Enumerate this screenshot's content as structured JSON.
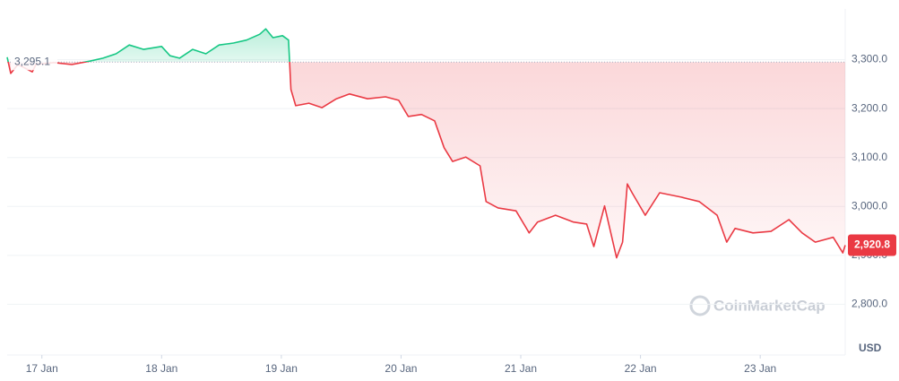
{
  "chart_data": {
    "type": "line",
    "currency": "USD",
    "watermark": "CoinMarketCap",
    "grid": true,
    "up_color": "#16c784",
    "down_color": "#ea3943",
    "baseline": {
      "value": 3295.1,
      "label": "3,295.1"
    },
    "last_value": {
      "value": 2920.8,
      "label": "2,920.8"
    },
    "xlim": [
      -0.29,
      6.71
    ],
    "xticks": [
      {
        "value": 0,
        "label": "17 Jan"
      },
      {
        "value": 1,
        "label": "18 Jan"
      },
      {
        "value": 2,
        "label": "19 Jan"
      },
      {
        "value": 3,
        "label": "20 Jan"
      },
      {
        "value": 4,
        "label": "21 Jan"
      },
      {
        "value": 5,
        "label": "22 Jan"
      },
      {
        "value": 6,
        "label": "23 Jan"
      }
    ],
    "ylim": [
      2700,
      3400
    ],
    "yticks": [
      {
        "value": 2800,
        "label": "2,800.0"
      },
      {
        "value": 2900,
        "label": "2,900.0"
      },
      {
        "value": 3000,
        "label": "3,000.0"
      },
      {
        "value": 3100,
        "label": "3,100.0"
      },
      {
        "value": 3200,
        "label": "3,200.0"
      },
      {
        "value": 3300,
        "label": "3,300.0"
      }
    ],
    "x": [
      -0.29,
      -0.26,
      -0.2,
      -0.08,
      -0.05,
      0.1,
      0.25,
      0.4,
      0.51,
      0.62,
      0.73,
      0.85,
      1.0,
      1.07,
      1.15,
      1.26,
      1.37,
      1.48,
      1.6,
      1.71,
      1.82,
      1.87,
      1.93,
      2.01,
      2.06,
      2.08,
      2.12,
      2.23,
      2.34,
      2.46,
      2.57,
      2.72,
      2.87,
      2.98,
      3.06,
      3.17,
      3.28,
      3.36,
      3.43,
      3.54,
      3.66,
      3.71,
      3.81,
      3.96,
      4.07,
      4.14,
      4.29,
      4.44,
      4.55,
      4.61,
      4.7,
      4.8,
      4.85,
      4.89,
      4.93,
      5.04,
      5.16,
      5.34,
      5.49,
      5.64,
      5.72,
      5.79,
      5.94,
      6.09,
      6.24,
      6.35,
      6.46,
      6.61,
      6.69,
      6.71
    ],
    "values": [
      3305,
      3272,
      3290,
      3275,
      3290,
      3294,
      3290,
      3297,
      3303,
      3312,
      3330,
      3321,
      3327,
      3308,
      3303,
      3321,
      3312,
      3330,
      3334,
      3340,
      3352,
      3363,
      3345,
      3349,
      3340,
      3239,
      3206,
      3211,
      3202,
      3220,
      3230,
      3220,
      3224,
      3217,
      3184,
      3188,
      3175,
      3120,
      3092,
      3101,
      3083,
      3010,
      2997,
      2991,
      2946,
      2968,
      2982,
      2968,
      2964,
      2918,
      3001,
      2895,
      2927,
      3046,
      3028,
      2982,
      3028,
      3019,
      3010,
      2982,
      2927,
      2955,
      2946,
      2949,
      2973,
      2946,
      2927,
      2937,
      2905,
      2920.8
    ]
  }
}
